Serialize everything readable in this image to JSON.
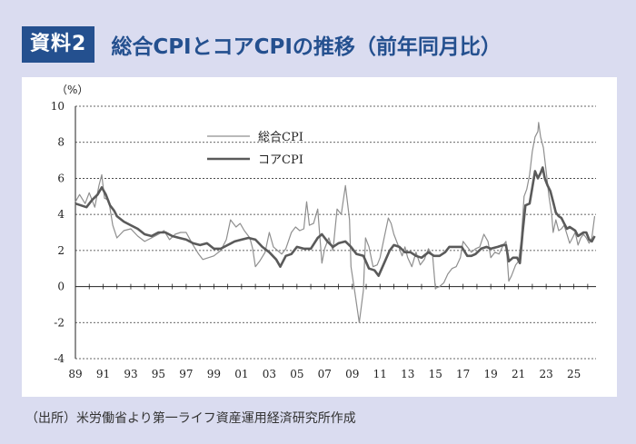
{
  "header": {
    "badge": "資料2",
    "title": "総合CPIとコアCPIの推移（前年同月比）"
  },
  "source": "（出所）米労働省より第一ライフ資産運用経済研究所作成",
  "colors": {
    "badge": "#24508f",
    "headline": "#8f8f8f",
    "core": "#5a5a5a",
    "background": "#dadcf0"
  },
  "chart_data": {
    "type": "line",
    "ylabel": "（%）",
    "ylim": [
      -4,
      10
    ],
    "yticks": [
      -4,
      -2,
      0,
      2,
      4,
      6,
      8,
      10
    ],
    "xlim": [
      1989,
      2026.6
    ],
    "xticks": [
      {
        "v": 1989,
        "label": "89"
      },
      {
        "v": 1991,
        "label": "91"
      },
      {
        "v": 1993,
        "label": "93"
      },
      {
        "v": 1995,
        "label": "95"
      },
      {
        "v": 1997,
        "label": "97"
      },
      {
        "v": 1999,
        "label": "99"
      },
      {
        "v": 2001,
        "label": "01"
      },
      {
        "v": 2003,
        "label": "03"
      },
      {
        "v": 2005,
        "label": "05"
      },
      {
        "v": 2007,
        "label": "07"
      },
      {
        "v": 2009,
        "label": "09"
      },
      {
        "v": 2011,
        "label": "11"
      },
      {
        "v": 2013,
        "label": "13"
      },
      {
        "v": 2015,
        "label": "15"
      },
      {
        "v": 2017,
        "label": "17"
      },
      {
        "v": 2019,
        "label": "19"
      },
      {
        "v": 2021,
        "label": "21"
      },
      {
        "v": 2023,
        "label": "23"
      },
      {
        "v": 2025,
        "label": "25"
      }
    ],
    "grid": "horizontal dashed",
    "legend_position": "top-center",
    "series": [
      {
        "name": "総合CPI",
        "points": [
          [
            1989.0,
            4.7
          ],
          [
            1989.3,
            5.1
          ],
          [
            1989.7,
            4.6
          ],
          [
            1990.0,
            5.2
          ],
          [
            1990.4,
            4.4
          ],
          [
            1990.7,
            5.6
          ],
          [
            1990.9,
            6.2
          ],
          [
            1991.1,
            4.9
          ],
          [
            1991.4,
            4.8
          ],
          [
            1991.7,
            3.4
          ],
          [
            1992.0,
            2.7
          ],
          [
            1992.5,
            3.1
          ],
          [
            1993.0,
            3.2
          ],
          [
            1993.5,
            2.8
          ],
          [
            1994.0,
            2.5
          ],
          [
            1994.5,
            2.7
          ],
          [
            1995.0,
            2.9
          ],
          [
            1995.4,
            3.1
          ],
          [
            1995.8,
            2.6
          ],
          [
            1996.2,
            2.9
          ],
          [
            1996.6,
            3.0
          ],
          [
            1997.0,
            3.0
          ],
          [
            1997.5,
            2.3
          ],
          [
            1997.9,
            1.8
          ],
          [
            1998.2,
            1.5
          ],
          [
            1998.6,
            1.6
          ],
          [
            1999.0,
            1.7
          ],
          [
            1999.5,
            2.0
          ],
          [
            1999.9,
            2.6
          ],
          [
            2000.2,
            3.7
          ],
          [
            2000.6,
            3.3
          ],
          [
            2000.9,
            3.5
          ],
          [
            2001.2,
            3.1
          ],
          [
            2001.6,
            2.7
          ],
          [
            2001.8,
            2.1
          ],
          [
            2002.0,
            1.1
          ],
          [
            2002.3,
            1.4
          ],
          [
            2002.7,
            1.9
          ],
          [
            2003.0,
            3.0
          ],
          [
            2003.3,
            2.2
          ],
          [
            2003.6,
            2.0
          ],
          [
            2003.9,
            1.8
          ],
          [
            2004.2,
            2.1
          ],
          [
            2004.6,
            3.0
          ],
          [
            2004.9,
            3.3
          ],
          [
            2005.2,
            3.1
          ],
          [
            2005.5,
            3.2
          ],
          [
            2005.7,
            4.7
          ],
          [
            2005.9,
            3.4
          ],
          [
            2006.2,
            3.5
          ],
          [
            2006.5,
            4.3
          ],
          [
            2006.8,
            1.3
          ],
          [
            2007.0,
            2.1
          ],
          [
            2007.3,
            2.7
          ],
          [
            2007.6,
            2.0
          ],
          [
            2007.9,
            4.3
          ],
          [
            2008.2,
            4.0
          ],
          [
            2008.5,
            5.6
          ],
          [
            2008.8,
            3.7
          ],
          [
            2008.9,
            1.1
          ],
          [
            2009.2,
            -0.4
          ],
          [
            2009.5,
            -2.0
          ],
          [
            2009.8,
            -0.2
          ],
          [
            2009.95,
            2.7
          ],
          [
            2010.2,
            2.2
          ],
          [
            2010.5,
            1.1
          ],
          [
            2010.8,
            1.2
          ],
          [
            2011.0,
            1.6
          ],
          [
            2011.3,
            2.7
          ],
          [
            2011.6,
            3.8
          ],
          [
            2011.8,
            3.5
          ],
          [
            2012.0,
            2.9
          ],
          [
            2012.3,
            2.3
          ],
          [
            2012.6,
            1.7
          ],
          [
            2012.8,
            2.2
          ],
          [
            2013.0,
            1.6
          ],
          [
            2013.3,
            1.1
          ],
          [
            2013.6,
            1.9
          ],
          [
            2013.9,
            1.2
          ],
          [
            2014.2,
            1.5
          ],
          [
            2014.5,
            2.1
          ],
          [
            2014.8,
            1.7
          ],
          [
            2015.0,
            -0.1
          ],
          [
            2015.3,
            0.0
          ],
          [
            2015.6,
            0.2
          ],
          [
            2015.9,
            0.7
          ],
          [
            2016.2,
            1.0
          ],
          [
            2016.5,
            1.1
          ],
          [
            2016.8,
            1.6
          ],
          [
            2017.0,
            2.5
          ],
          [
            2017.3,
            2.2
          ],
          [
            2017.6,
            1.9
          ],
          [
            2017.9,
            2.1
          ],
          [
            2018.2,
            2.2
          ],
          [
            2018.5,
            2.9
          ],
          [
            2018.8,
            2.5
          ],
          [
            2019.0,
            1.6
          ],
          [
            2019.3,
            1.9
          ],
          [
            2019.6,
            1.8
          ],
          [
            2019.9,
            2.3
          ],
          [
            2020.1,
            2.5
          ],
          [
            2020.3,
            0.3
          ],
          [
            2020.5,
            0.6
          ],
          [
            2020.8,
            1.2
          ],
          [
            2021.0,
            1.4
          ],
          [
            2021.2,
            2.6
          ],
          [
            2021.4,
            5.0
          ],
          [
            2021.6,
            5.4
          ],
          [
            2021.8,
            6.2
          ],
          [
            2022.0,
            7.5
          ],
          [
            2022.2,
            8.3
          ],
          [
            2022.4,
            8.6
          ],
          [
            2022.45,
            9.1
          ],
          [
            2022.6,
            8.3
          ],
          [
            2022.8,
            7.7
          ],
          [
            2023.0,
            6.4
          ],
          [
            2023.2,
            5.0
          ],
          [
            2023.4,
            4.0
          ],
          [
            2023.5,
            3.0
          ],
          [
            2023.7,
            3.7
          ],
          [
            2023.9,
            3.1
          ],
          [
            2024.1,
            3.2
          ],
          [
            2024.3,
            3.4
          ],
          [
            2024.5,
            2.9
          ],
          [
            2024.7,
            2.4
          ],
          [
            2024.9,
            2.7
          ],
          [
            2025.1,
            3.0
          ],
          [
            2025.3,
            2.3
          ],
          [
            2025.5,
            2.7
          ],
          [
            2025.7,
            2.9
          ],
          [
            2025.9,
            2.7
          ],
          [
            2026.1,
            2.4
          ],
          [
            2026.3,
            2.7
          ],
          [
            2026.5,
            3.9
          ]
        ]
      },
      {
        "name": "コアCPI",
        "points": [
          [
            1989.0,
            4.6
          ],
          [
            1989.4,
            4.5
          ],
          [
            1989.8,
            4.4
          ],
          [
            1990.2,
            4.8
          ],
          [
            1990.6,
            5.1
          ],
          [
            1990.9,
            5.5
          ],
          [
            1991.2,
            5.1
          ],
          [
            1991.5,
            4.5
          ],
          [
            1991.8,
            4.2
          ],
          [
            1992.0,
            3.9
          ],
          [
            1992.5,
            3.6
          ],
          [
            1993.0,
            3.4
          ],
          [
            1993.5,
            3.2
          ],
          [
            1994.0,
            2.9
          ],
          [
            1994.5,
            2.8
          ],
          [
            1995.0,
            3.0
          ],
          [
            1995.5,
            3.0
          ],
          [
            1996.0,
            2.8
          ],
          [
            1996.5,
            2.7
          ],
          [
            1997.0,
            2.6
          ],
          [
            1997.5,
            2.4
          ],
          [
            1998.0,
            2.3
          ],
          [
            1998.5,
            2.4
          ],
          [
            1999.0,
            2.1
          ],
          [
            1999.5,
            2.1
          ],
          [
            2000.0,
            2.3
          ],
          [
            2000.5,
            2.5
          ],
          [
            2001.0,
            2.6
          ],
          [
            2001.5,
            2.7
          ],
          [
            2002.0,
            2.6
          ],
          [
            2002.5,
            2.2
          ],
          [
            2003.0,
            1.9
          ],
          [
            2003.5,
            1.5
          ],
          [
            2003.8,
            1.1
          ],
          [
            2004.2,
            1.7
          ],
          [
            2004.6,
            1.8
          ],
          [
            2005.0,
            2.2
          ],
          [
            2005.5,
            2.1
          ],
          [
            2006.0,
            2.1
          ],
          [
            2006.5,
            2.7
          ],
          [
            2006.8,
            2.9
          ],
          [
            2007.2,
            2.5
          ],
          [
            2007.6,
            2.2
          ],
          [
            2008.0,
            2.4
          ],
          [
            2008.5,
            2.5
          ],
          [
            2008.9,
            2.2
          ],
          [
            2009.3,
            1.8
          ],
          [
            2009.8,
            1.7
          ],
          [
            2010.2,
            1.0
          ],
          [
            2010.6,
            0.9
          ],
          [
            2010.9,
            0.6
          ],
          [
            2011.3,
            1.3
          ],
          [
            2011.7,
            2.0
          ],
          [
            2012.0,
            2.3
          ],
          [
            2012.4,
            2.2
          ],
          [
            2012.8,
            1.9
          ],
          [
            2013.2,
            1.9
          ],
          [
            2013.6,
            1.7
          ],
          [
            2014.0,
            1.6
          ],
          [
            2014.5,
            1.9
          ],
          [
            2014.9,
            1.7
          ],
          [
            2015.3,
            1.7
          ],
          [
            2015.7,
            1.9
          ],
          [
            2016.0,
            2.2
          ],
          [
            2016.5,
            2.2
          ],
          [
            2016.9,
            2.2
          ],
          [
            2017.3,
            1.7
          ],
          [
            2017.6,
            1.7
          ],
          [
            2017.9,
            1.8
          ],
          [
            2018.3,
            2.1
          ],
          [
            2018.7,
            2.2
          ],
          [
            2019.0,
            2.1
          ],
          [
            2019.5,
            2.2
          ],
          [
            2019.9,
            2.3
          ],
          [
            2020.1,
            2.3
          ],
          [
            2020.3,
            1.4
          ],
          [
            2020.6,
            1.6
          ],
          [
            2020.9,
            1.6
          ],
          [
            2021.1,
            1.3
          ],
          [
            2021.3,
            3.0
          ],
          [
            2021.5,
            4.5
          ],
          [
            2021.8,
            4.6
          ],
          [
            2022.0,
            5.5
          ],
          [
            2022.2,
            6.4
          ],
          [
            2022.4,
            6.0
          ],
          [
            2022.6,
            6.3
          ],
          [
            2022.75,
            6.6
          ],
          [
            2022.9,
            6.0
          ],
          [
            2023.1,
            5.6
          ],
          [
            2023.3,
            5.3
          ],
          [
            2023.5,
            4.7
          ],
          [
            2023.7,
            4.1
          ],
          [
            2023.9,
            3.9
          ],
          [
            2024.1,
            3.8
          ],
          [
            2024.3,
            3.5
          ],
          [
            2024.5,
            3.2
          ],
          [
            2024.7,
            3.3
          ],
          [
            2024.9,
            3.2
          ],
          [
            2025.1,
            3.1
          ],
          [
            2025.3,
            2.8
          ],
          [
            2025.5,
            2.9
          ],
          [
            2025.7,
            3.0
          ],
          [
            2025.9,
            3.0
          ],
          [
            2026.1,
            2.6
          ],
          [
            2026.3,
            2.5
          ],
          [
            2026.5,
            2.8
          ]
        ]
      }
    ]
  }
}
